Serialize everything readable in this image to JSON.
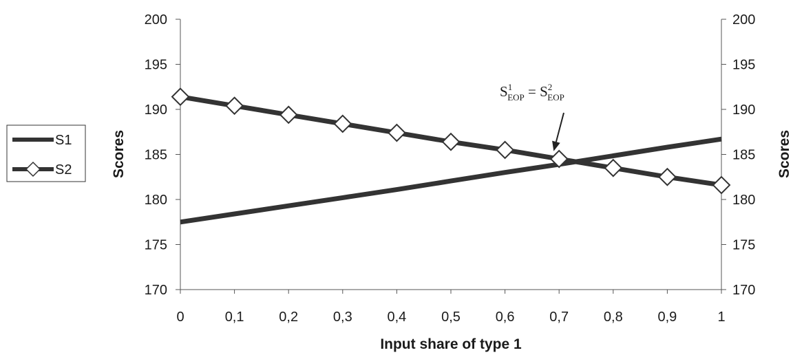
{
  "chart_data": {
    "type": "line",
    "title": "",
    "xlabel": "Input share of type 1",
    "ylabel_left": "Scores",
    "ylabel_right": "Scores",
    "x": [
      0,
      0.1,
      0.2,
      0.3,
      0.4,
      0.5,
      0.6,
      0.7,
      0.8,
      0.9,
      1
    ],
    "x_tick_labels": [
      "0",
      "0,1",
      "0,2",
      "0,3",
      "0,4",
      "0,5",
      "0,6",
      "0,7",
      "0,8",
      "0,9",
      "1"
    ],
    "xlim": [
      0,
      1
    ],
    "ylim": [
      170,
      200
    ],
    "y_ticks": [
      170,
      175,
      180,
      185,
      190,
      195,
      200
    ],
    "y_tick_labels": [
      "170",
      "175",
      "180",
      "185",
      "190",
      "195",
      "200"
    ],
    "grid": false,
    "legend_position": "left",
    "series": [
      {
        "name": "S1",
        "color": "#333333",
        "marker": "none",
        "values": [
          177.5,
          178.4,
          179.3,
          180.2,
          181.1,
          182.05,
          183.0,
          183.9,
          184.85,
          185.8,
          186.7
        ]
      },
      {
        "name": "S2",
        "color": "#333333",
        "marker": "diamond",
        "values": [
          191.4,
          190.4,
          189.4,
          188.4,
          187.4,
          186.4,
          185.5,
          184.5,
          183.5,
          182.5,
          181.6
        ]
      }
    ],
    "annotation": {
      "base_a": "S",
      "sup_a": "1",
      "sub_a": "EOP",
      "equals": " = ",
      "base_b": "S",
      "sup_b": "2",
      "sub_b": "EOP",
      "points_to_x": 0.69,
      "points_to_y": 184.6
    }
  }
}
